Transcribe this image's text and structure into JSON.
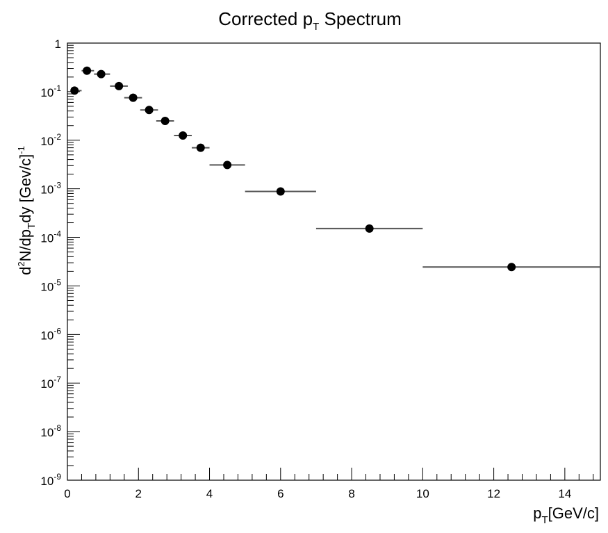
{
  "chart_data": {
    "type": "scatter",
    "title": {
      "main": "Corrected p",
      "sub": "T",
      "rest": " Spectrum"
    },
    "xlabel": {
      "main": "p",
      "sub": "T",
      "rest": "[GeV/c]"
    },
    "ylabel": {
      "d": "d",
      "sup2": "2",
      "mid": "N/dp",
      "subT": "T",
      "dy": "dy [Gev/c]",
      "supm1": "-1"
    },
    "xlim": [
      0,
      15
    ],
    "ylim": [
      1e-09,
      1
    ],
    "y_scale": "log",
    "grid": false,
    "x_ticks": [
      0,
      2,
      4,
      6,
      8,
      10,
      12,
      14
    ],
    "x_tick_labels": [
      "0",
      "2",
      "4",
      "6",
      "8",
      "10",
      "12",
      "14"
    ],
    "y_major_ticks": [
      {
        "value": 1,
        "base": "1",
        "exp": ""
      },
      {
        "value": 0.1,
        "base": "10",
        "exp": "-1"
      },
      {
        "value": 0.01,
        "base": "10",
        "exp": "-2"
      },
      {
        "value": 0.001,
        "base": "10",
        "exp": "-3"
      },
      {
        "value": 0.0001,
        "base": "10",
        "exp": "-4"
      },
      {
        "value": 1e-05,
        "base": "10",
        "exp": "-5"
      },
      {
        "value": 1e-06,
        "base": "10",
        "exp": "-6"
      },
      {
        "value": 1e-07,
        "base": "10",
        "exp": "-7"
      },
      {
        "value": 1e-08,
        "base": "10",
        "exp": "-8"
      },
      {
        "value": 1e-09,
        "base": "10",
        "exp": "-9"
      }
    ],
    "points": [
      {
        "x": 0.2,
        "y": 0.105,
        "xerr": [
          0.0,
          0.2
        ]
      },
      {
        "x": 0.55,
        "y": 0.27,
        "xerr": [
          0.15,
          0.2
        ]
      },
      {
        "x": 0.95,
        "y": 0.23,
        "xerr": [
          0.2,
          0.25
        ]
      },
      {
        "x": 1.45,
        "y": 0.13,
        "xerr": [
          0.25,
          0.25
        ]
      },
      {
        "x": 1.85,
        "y": 0.075,
        "xerr": [
          0.25,
          0.25
        ]
      },
      {
        "x": 2.3,
        "y": 0.042,
        "xerr": [
          0.25,
          0.25
        ]
      },
      {
        "x": 2.75,
        "y": 0.025,
        "xerr": [
          0.25,
          0.25
        ]
      },
      {
        "x": 3.25,
        "y": 0.0125,
        "xerr": [
          0.25,
          0.25
        ]
      },
      {
        "x": 3.75,
        "y": 0.007,
        "xerr": [
          0.25,
          0.25
        ]
      },
      {
        "x": 4.5,
        "y": 0.0031,
        "xerr": [
          0.5,
          0.5
        ]
      },
      {
        "x": 6.0,
        "y": 0.00088,
        "xerr": [
          1.0,
          1.0
        ]
      },
      {
        "x": 8.5,
        "y": 0.000152,
        "xerr": [
          1.5,
          1.5
        ]
      },
      {
        "x": 12.5,
        "y": 2.45e-05,
        "xerr": [
          2.5,
          2.5
        ]
      }
    ]
  }
}
